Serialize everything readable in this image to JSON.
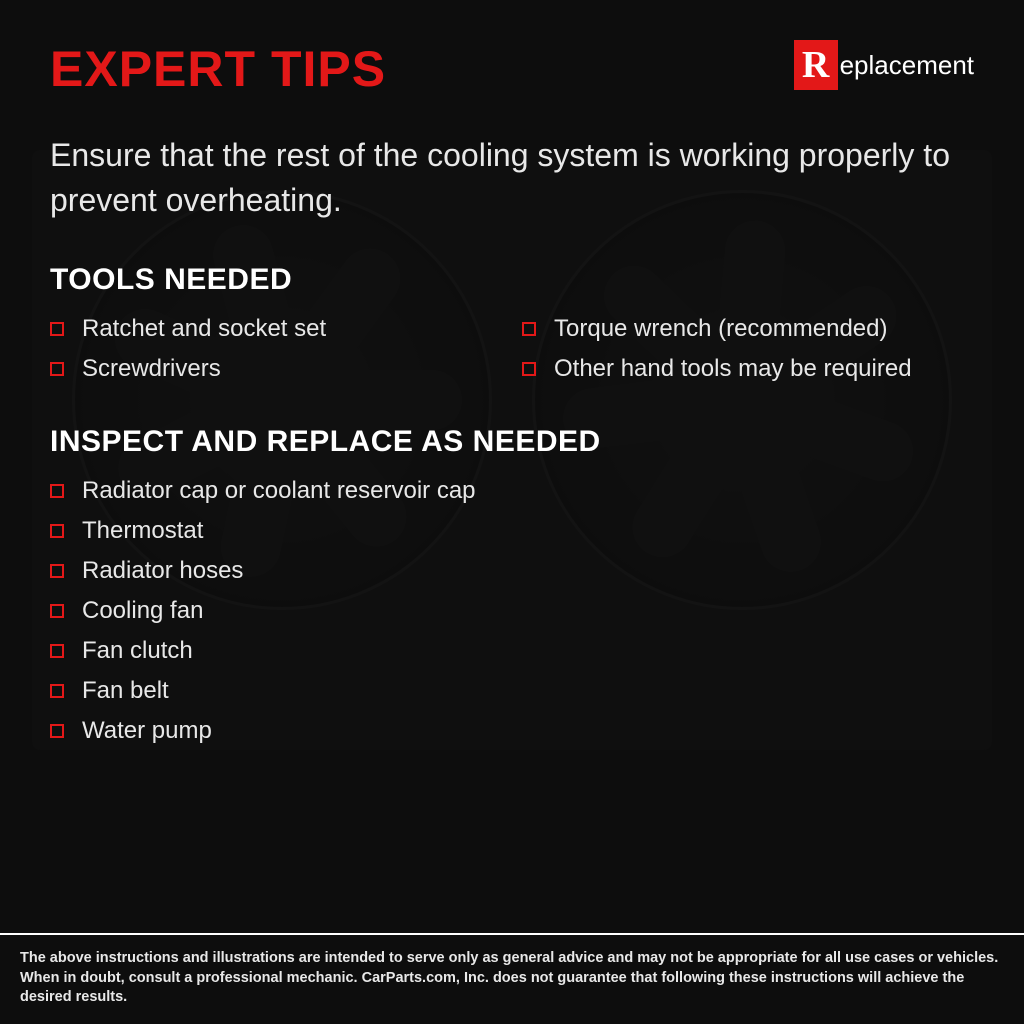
{
  "colors": {
    "background": "#0d0d0d",
    "accent": "#e31818",
    "text": "#ffffff",
    "body_text": "#e8e8e8",
    "bullet_border": "#e31818"
  },
  "typography": {
    "title_size": 50,
    "title_weight": 800,
    "section_size": 30,
    "body_size": 24,
    "intro_size": 32,
    "disclaimer_size": 14.5
  },
  "header": {
    "title": "EXPERT TIPS",
    "logo_r": "R",
    "logo_text": "eplacement"
  },
  "intro": "Ensure that the rest of the cooling system is working properly to prevent overheating.",
  "sections": {
    "tools": {
      "heading": "TOOLS NEEDED",
      "items": [
        "Ratchet and socket set",
        "Torque wrench (recommended)",
        "Screwdrivers",
        "Other hand tools may be required"
      ]
    },
    "inspect": {
      "heading": "INSPECT AND REPLACE AS NEEDED",
      "items": [
        "Radiator cap or coolant reservoir cap",
        "Thermostat",
        "Radiator hoses",
        "Cooling fan",
        "Fan clutch",
        "Fan belt",
        "Water pump"
      ]
    }
  },
  "disclaimer": "The above instructions and illustrations are intended to serve only as general advice and may not be appropriate for all use cases or vehicles. When in doubt, consult a professional mechanic. CarParts.com, Inc. does not guarantee that following these instructions will achieve the desired results."
}
